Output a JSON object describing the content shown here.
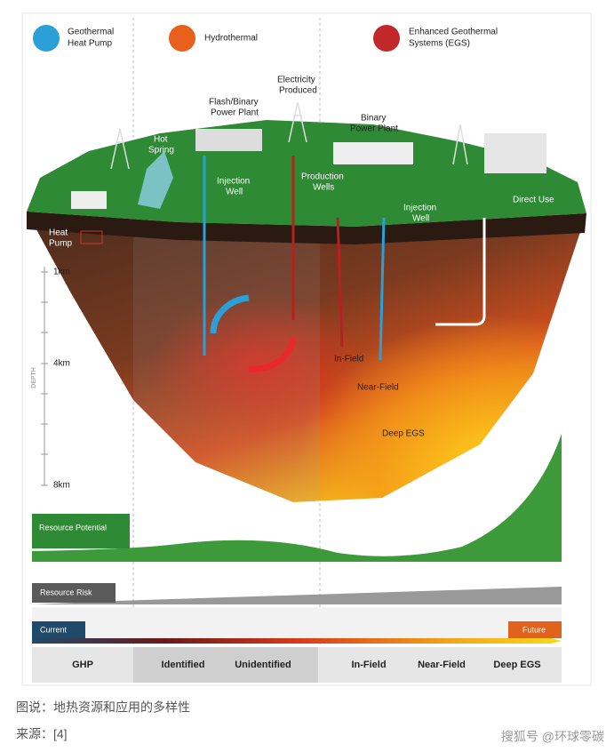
{
  "header": {
    "categories": [
      {
        "lines": [
          "Geothermal",
          "Heat Pump"
        ]
      },
      {
        "lines": [
          "Hydrothermal"
        ]
      },
      {
        "lines": [
          "Enhanced Geothermal",
          "Systems (EGS)"
        ]
      }
    ]
  },
  "illustration": {
    "labels": {
      "heat_pump": [
        "Heat",
        "Pump"
      ],
      "hot_spring": [
        "Hot",
        "Spring"
      ],
      "flash_plant": [
        "Flash/Binary",
        "Power Plant"
      ],
      "electricity": [
        "Electricity",
        "Produced"
      ],
      "binary_plant": [
        "Binary",
        "Power Plant"
      ],
      "injection_well_1": [
        "Injection",
        "Well"
      ],
      "production_wells": [
        "Production",
        "Wells"
      ],
      "injection_well_2": [
        "Injection",
        "Well"
      ],
      "direct_use": [
        "Direct Use"
      ],
      "in_field": [
        "In-Field"
      ],
      "near_field": [
        "Near-Field"
      ],
      "deep_egs": [
        "Deep EGS"
      ]
    },
    "depth": {
      "title": "DEPTH",
      "ticks": [
        "1km",
        "4km",
        "8km"
      ]
    }
  },
  "bands": {
    "resource_potential": "Resource Potential",
    "resource_risk": "Resource Risk",
    "current": "Current",
    "future": "Future"
  },
  "bottom": {
    "categories": [
      "GHP",
      "Identified",
      "Unidentified",
      "In-Field",
      "Near-Field",
      "Deep EGS"
    ]
  },
  "caption": "图说：地热资源和应用的多样性",
  "source": "来源：[4]",
  "watermark": "搜狐号 @环球零碳"
}
